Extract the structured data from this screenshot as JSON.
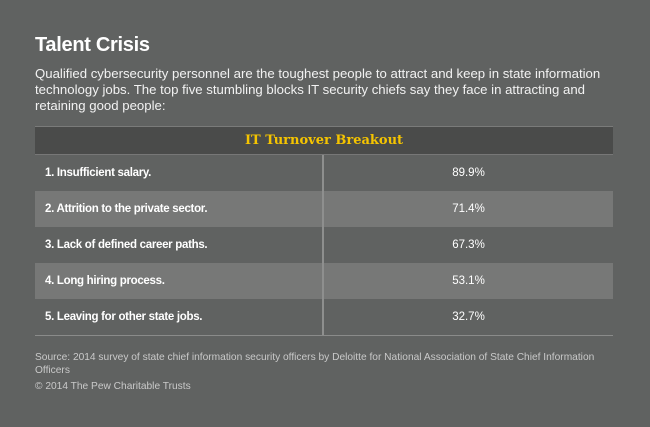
{
  "title": "Talent Crisis",
  "subtitle": "Qualified cybersecurity personnel are the toughest people to attract and keep in state information technology jobs. The top five stumbling blocks IT security chiefs say they face in attracting and retaining good people:",
  "chart_data": {
    "type": "table",
    "title": "IT Turnover Breakout",
    "rows": [
      {
        "label": "1. Insufficient salary.",
        "value": "89.9%"
      },
      {
        "label": "2. Attrition to the private sector.",
        "value": "71.4%"
      },
      {
        "label": "3. Lack of defined career paths.",
        "value": "67.3%"
      },
      {
        "label": "4. Long hiring process.",
        "value": "53.1%"
      },
      {
        "label": "5. Leaving for other state jobs.",
        "value": "32.7%"
      }
    ]
  },
  "source": "Source: 2014 survey of state chief information security officers by Deloitte for National Association of State Chief Information Officers",
  "copyright": "© 2014 The Pew Charitable Trusts",
  "colors": {
    "background": "#606261",
    "header": "#4a4b4a",
    "accent": "#f5c400",
    "alt_row": "#777877"
  }
}
